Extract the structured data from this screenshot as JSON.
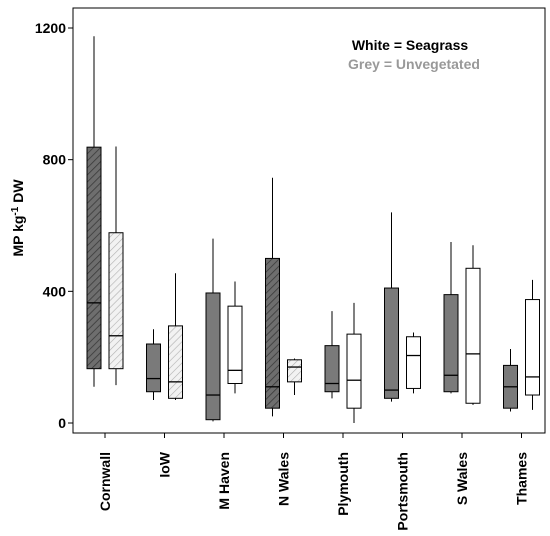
{
  "chart_data": {
    "type": "box",
    "ylabel_main": "MP kg",
    "ylabel_sup": "-1",
    "ylabel_tail": " DW",
    "ylim": [
      0,
      1200
    ],
    "yticks": [
      "0",
      "400",
      "800",
      "1200"
    ],
    "ytick_values": [
      0,
      400,
      800,
      1200
    ],
    "legend": {
      "line1": "White = Seagrass",
      "line2": "Grey = Unvegetated",
      "line1_color": "#000000",
      "line2_color": "#999999",
      "position": "top-right"
    },
    "categories": [
      "Cornwall",
      "IoW",
      "M Haven",
      "N Wales",
      "Plymouth",
      "Portsmouth",
      "S Wales",
      "Thames"
    ],
    "series": [
      {
        "name": "Grey = Unvegetated",
        "color": "#7a7a7a",
        "boxes": [
          {
            "min": 110,
            "q1": 165,
            "median": 365,
            "q3": 838,
            "max": 1175,
            "hatched": true
          },
          {
            "min": 70,
            "q1": 95,
            "median": 135,
            "q3": 240,
            "max": 285,
            "hatched": false
          },
          {
            "min": 5,
            "q1": 10,
            "median": 85,
            "q3": 395,
            "max": 560,
            "hatched": false
          },
          {
            "min": 20,
            "q1": 45,
            "median": 110,
            "q3": 500,
            "max": 745,
            "hatched": true
          },
          {
            "min": 75,
            "q1": 95,
            "median": 120,
            "q3": 235,
            "max": 340,
            "hatched": false
          },
          {
            "min": 65,
            "q1": 75,
            "median": 100,
            "q3": 410,
            "max": 640,
            "hatched": false
          },
          {
            "min": 90,
            "q1": 95,
            "median": 145,
            "q3": 390,
            "max": 550,
            "hatched": false
          },
          {
            "min": 35,
            "q1": 45,
            "median": 110,
            "q3": 175,
            "max": 225,
            "hatched": false
          }
        ]
      },
      {
        "name": "White = Seagrass",
        "color": "#ffffff",
        "boxes": [
          {
            "min": 115,
            "q1": 165,
            "median": 265,
            "q3": 578,
            "max": 840,
            "hatched": true
          },
          {
            "min": 70,
            "q1": 75,
            "median": 125,
            "q3": 295,
            "max": 455,
            "hatched": true
          },
          {
            "min": 90,
            "q1": 120,
            "median": 160,
            "q3": 355,
            "max": 430,
            "hatched": false
          },
          {
            "min": 85,
            "q1": 125,
            "median": 170,
            "q3": 192,
            "max": 196,
            "hatched": true
          },
          {
            "min": 0,
            "q1": 45,
            "median": 130,
            "q3": 270,
            "max": 365,
            "hatched": false
          },
          {
            "min": 90,
            "q1": 105,
            "median": 205,
            "q3": 262,
            "max": 275,
            "hatched": false
          },
          {
            "min": 55,
            "q1": 60,
            "median": 210,
            "q3": 470,
            "max": 540,
            "hatched": false
          },
          {
            "min": 40,
            "q1": 85,
            "median": 140,
            "q3": 375,
            "max": 435,
            "hatched": false
          }
        ]
      }
    ]
  }
}
